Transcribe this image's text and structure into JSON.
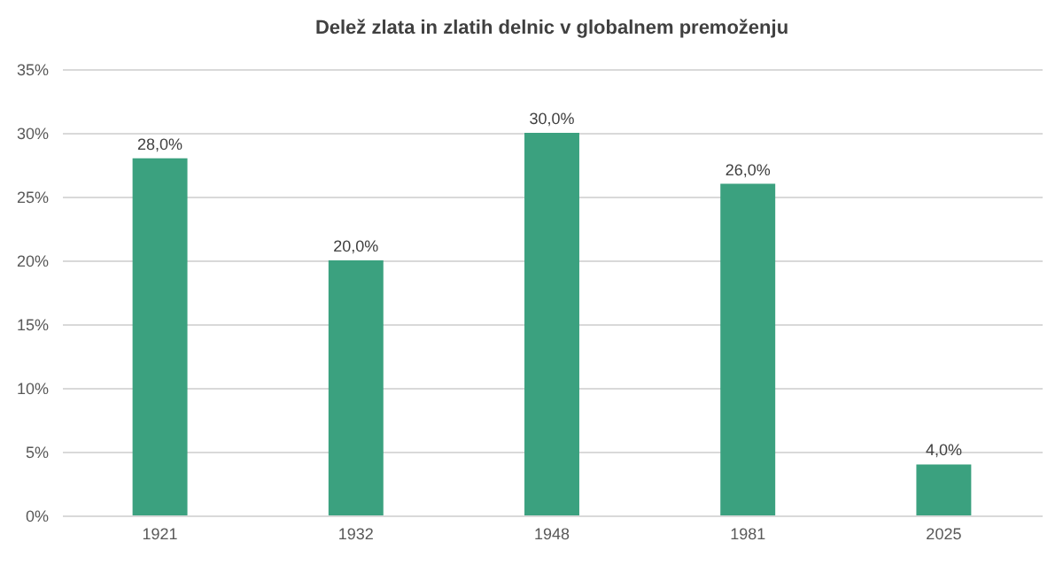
{
  "chart_data": {
    "type": "bar",
    "title": "Delež zlata in zlatih delnic v globalnem premoženju",
    "categories": [
      "1921",
      "1932",
      "1948",
      "1981",
      "2025"
    ],
    "values": [
      28,
      20,
      30,
      26,
      4
    ],
    "color": "#3ba17f",
    "value_labels": [
      "28,0%",
      "20,0%",
      "30,0%",
      "26,0%",
      "4,0%"
    ],
    "ylim": [
      0,
      35
    ],
    "yticks": [
      {
        "value": 0,
        "label": "0%"
      },
      {
        "value": 5,
        "label": "5%"
      },
      {
        "value": 10,
        "label": "10%"
      },
      {
        "value": 15,
        "label": "15%"
      },
      {
        "value": 20,
        "label": "20%"
      },
      {
        "value": 25,
        "label": "25%"
      },
      {
        "value": 30,
        "label": "30%"
      },
      {
        "value": 35,
        "label": "35%"
      }
    ],
    "grid": "y"
  }
}
